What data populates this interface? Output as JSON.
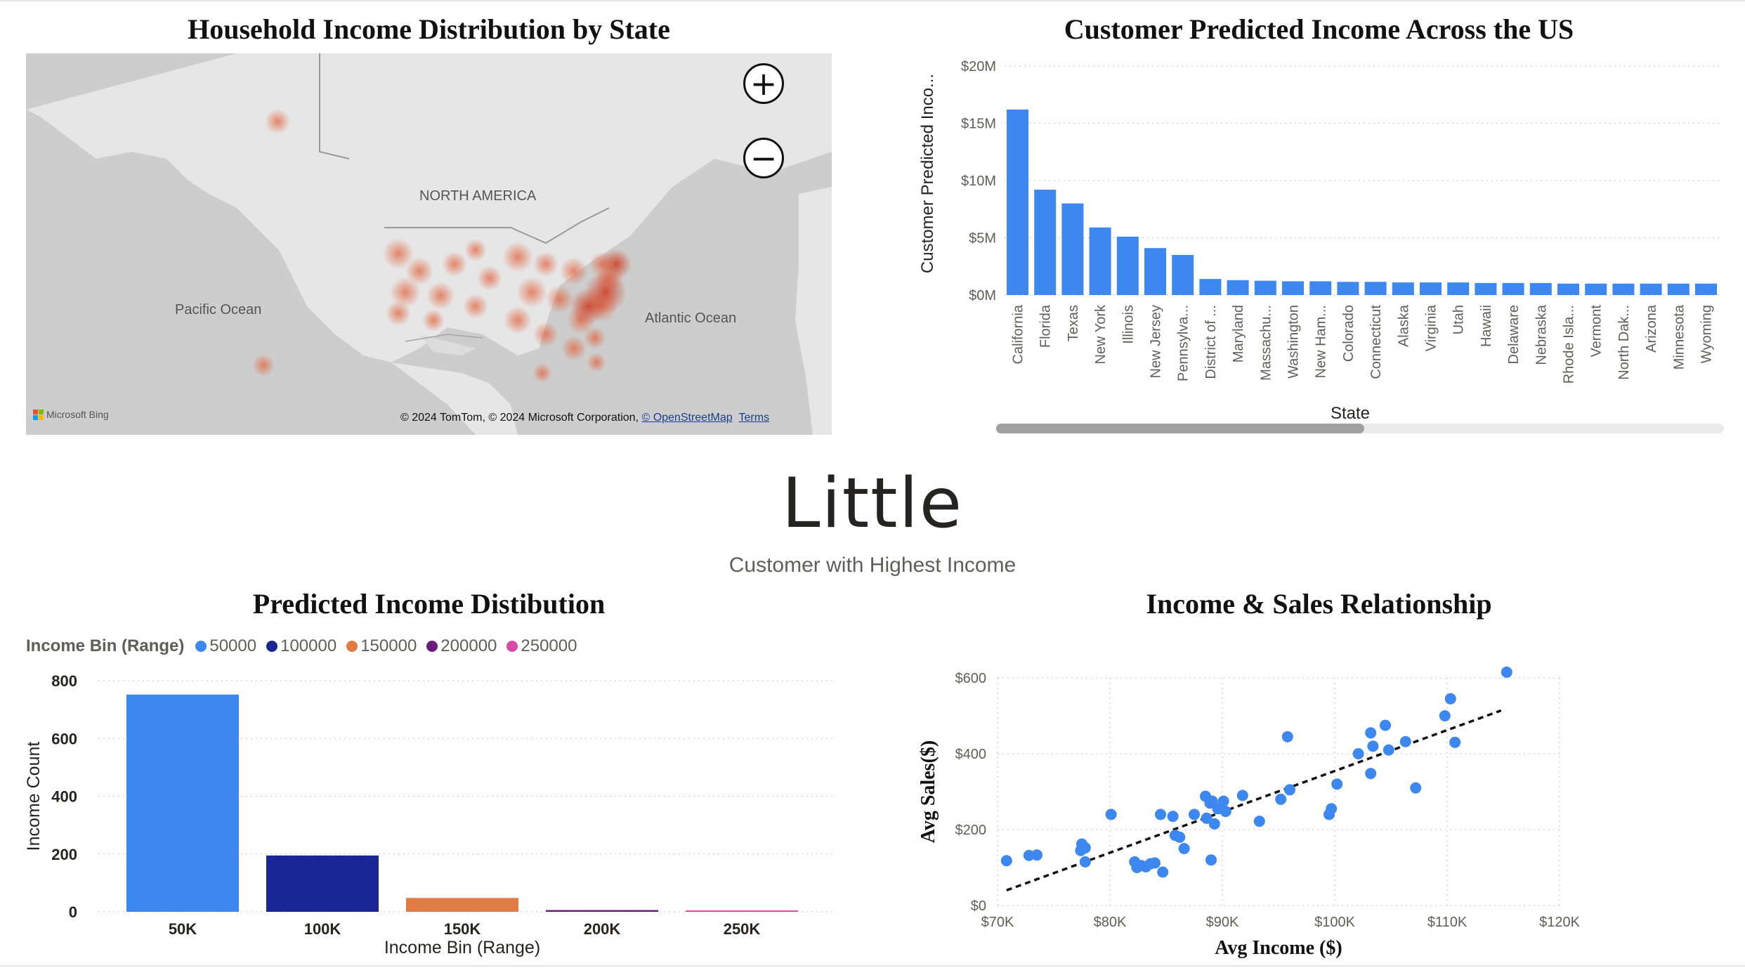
{
  "map_panel": {
    "title": "Household Income Distribution by State",
    "labels": {
      "continent": "NORTH AMERICA",
      "pacific": "Pacific Ocean",
      "atlantic": "Atlantic Ocean"
    },
    "bing": "Microsoft Bing",
    "attribution": "© 2024 TomTom, © 2024 Microsoft Corporation,",
    "osm_link": "© OpenStreetMap",
    "terms_link": "Terms",
    "zoom_in": "+",
    "zoom_out": "−"
  },
  "state_chart": {
    "title": "Customer Predicted Income Across the US"
  },
  "kpi": {
    "value": "Little",
    "label": "Customer with Highest Income"
  },
  "bin_chart": {
    "title": "Predicted Income Distibution",
    "legend_title": "Income Bin (Range)",
    "legend": [
      {
        "label": "50000",
        "color": "#3c87f0"
      },
      {
        "label": "100000",
        "color": "#1a2596"
      },
      {
        "label": "150000",
        "color": "#e07b45"
      },
      {
        "label": "200000",
        "color": "#6b1c7d"
      },
      {
        "label": "250000",
        "color": "#d74aa6"
      }
    ]
  },
  "scatter_chart": {
    "title": "Income & Sales Relationship"
  },
  "chart_data": [
    {
      "type": "bar",
      "title": "Customer Predicted Income Across the US",
      "xlabel": "State",
      "ylabel": "Customer Predicted Inco...",
      "ylim": [
        0,
        20
      ],
      "y_ticks": [
        "$0M",
        "$5M",
        "$10M",
        "$15M",
        "$20M"
      ],
      "categories": [
        "California",
        "Florida",
        "Texas",
        "New York",
        "Illinois",
        "New Jersey",
        "Pennsylva...",
        "District of ...",
        "Maryland",
        "Massachu...",
        "Washington",
        "New Ham...",
        "Colorado",
        "Connecticut",
        "Alaska",
        "Virginia",
        "Utah",
        "Hawaii",
        "Delaware",
        "Nebraska",
        "Rhode Isla...",
        "Vermont",
        "North Dak...",
        "Arizona",
        "Minnesota",
        "Wyoming"
      ],
      "values": [
        16.2,
        9.2,
        8.0,
        5.9,
        5.1,
        4.1,
        3.5,
        1.4,
        1.3,
        1.25,
        1.2,
        1.2,
        1.15,
        1.15,
        1.1,
        1.1,
        1.1,
        1.05,
        1.05,
        1.05,
        1.0,
        1.0,
        1.0,
        1.0,
        1.0,
        1.0
      ],
      "color": "#3c87f0",
      "grid": true
    },
    {
      "type": "bar",
      "title": "Predicted Income Distibution",
      "xlabel": "Income Bin (Range)",
      "ylabel": "Income Count",
      "ylim": [
        0,
        800
      ],
      "y_ticks": [
        "0",
        "200",
        "400",
        "600",
        "800"
      ],
      "categories": [
        "50K",
        "100K",
        "150K",
        "200K",
        "250K"
      ],
      "values": [
        752,
        195,
        48,
        6,
        2
      ],
      "colors": [
        "#3c87f0",
        "#1a2596",
        "#e07b45",
        "#6b1c7d",
        "#d74aa6"
      ],
      "legend": "top-left",
      "grid": true
    },
    {
      "type": "scatter",
      "title": "Income & Sales Relationship",
      "xlabel": "Avg Income ($)",
      "ylabel": "Avg Sales($)",
      "xlim": [
        70,
        120
      ],
      "ylim": [
        0,
        600
      ],
      "x_ticks": [
        "$70K",
        "$80K",
        "$90K",
        "$100K",
        "$110K",
        "$120K"
      ],
      "y_ticks": [
        "$0",
        "$200",
        "$400",
        "$600"
      ],
      "color": "#3c87f0",
      "trendline": {
        "x": [
          70.8,
          114.8
        ],
        "y": [
          40,
          514
        ],
        "style": "dashed"
      },
      "points": [
        [
          70.8,
          118
        ],
        [
          72.8,
          132
        ],
        [
          73.5,
          133
        ],
        [
          77.5,
          162
        ],
        [
          77.4,
          145
        ],
        [
          77.8,
          152
        ],
        [
          77.8,
          115
        ],
        [
          80.1,
          240
        ],
        [
          82.2,
          115
        ],
        [
          82.4,
          100
        ],
        [
          82.8,
          105
        ],
        [
          83.2,
          102
        ],
        [
          83.6,
          110
        ],
        [
          84.0,
          112
        ],
        [
          84.5,
          240
        ],
        [
          84.7,
          88
        ],
        [
          85.6,
          235
        ],
        [
          85.8,
          185
        ],
        [
          86.2,
          180
        ],
        [
          86.6,
          150
        ],
        [
          87.5,
          240
        ],
        [
          88.5,
          288
        ],
        [
          88.6,
          230
        ],
        [
          88.9,
          270
        ],
        [
          89.0,
          120
        ],
        [
          89.1,
          275
        ],
        [
          89.3,
          215
        ],
        [
          89.6,
          255
        ],
        [
          90.1,
          275
        ],
        [
          90.3,
          248
        ],
        [
          91.8,
          290
        ],
        [
          93.3,
          222
        ],
        [
          95.2,
          280
        ],
        [
          95.8,
          445
        ],
        [
          96.0,
          305
        ],
        [
          99.5,
          240
        ],
        [
          99.7,
          255
        ],
        [
          100.2,
          320
        ],
        [
          102.1,
          400
        ],
        [
          103.2,
          455
        ],
        [
          103.2,
          348
        ],
        [
          103.4,
          420
        ],
        [
          104.5,
          475
        ],
        [
          104.8,
          410
        ],
        [
          106.3,
          432
        ],
        [
          107.2,
          310
        ],
        [
          109.8,
          500
        ],
        [
          110.3,
          545
        ],
        [
          110.7,
          430
        ],
        [
          115.3,
          615
        ]
      ],
      "grid": true
    }
  ]
}
